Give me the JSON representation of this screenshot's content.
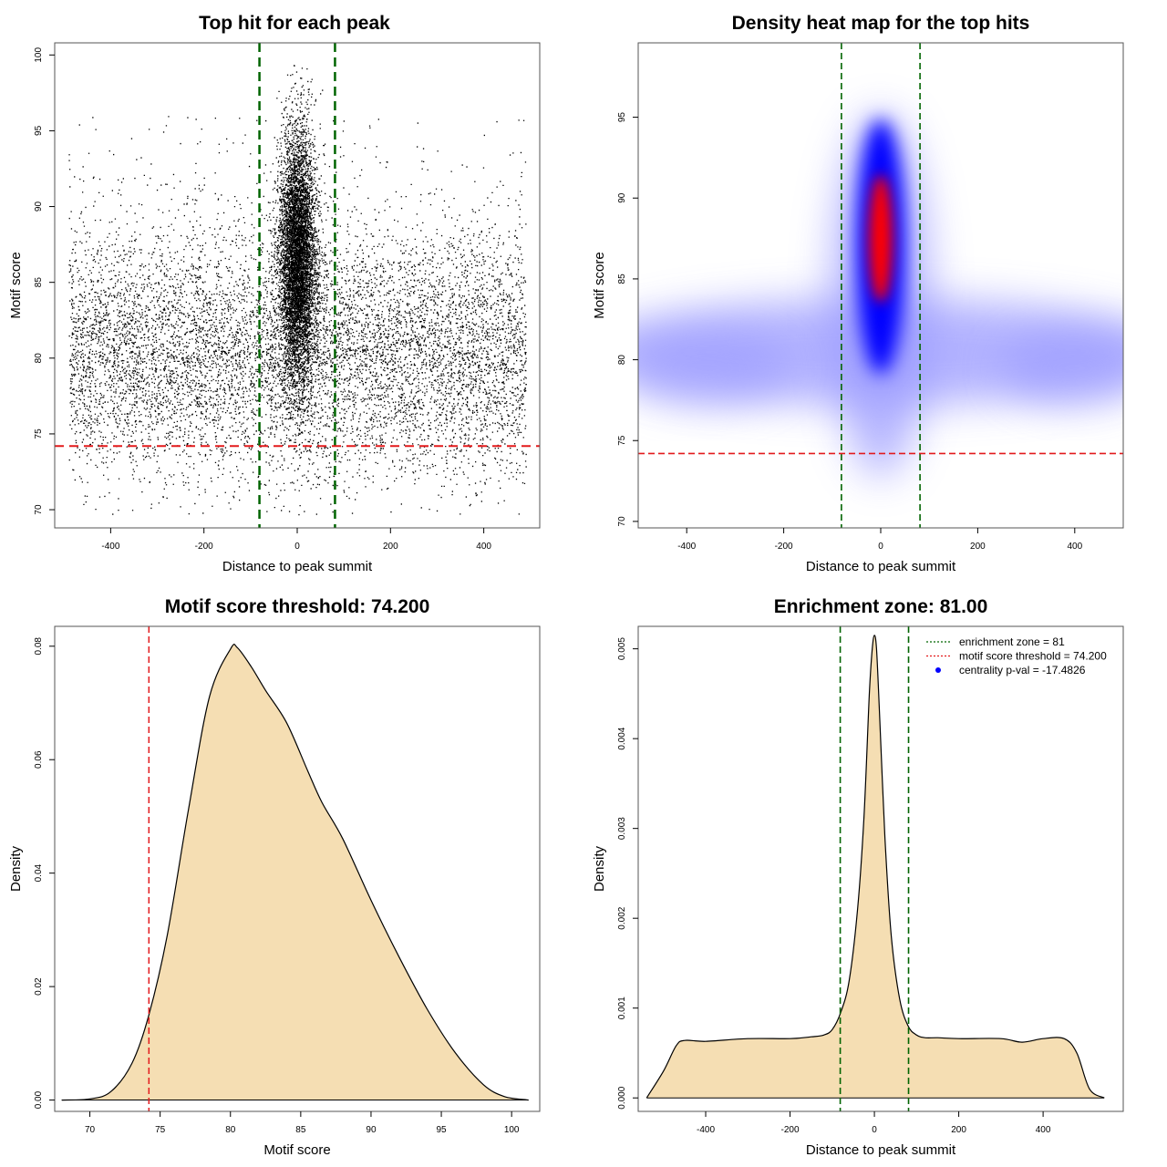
{
  "chart_data": [
    {
      "type": "scatter",
      "title": "Top hit for each peak",
      "xlabel": "Distance to peak summit",
      "ylabel": "Motif score",
      "xlim": [
        -520,
        520
      ],
      "ylim": [
        68.8,
        100.8
      ],
      "xticks": [
        "-400",
        "-200",
        "0",
        "200",
        "400"
      ],
      "xtick_values": [
        -400,
        -200,
        0,
        200,
        400
      ],
      "yticks": [
        "70",
        "75",
        "80",
        "85",
        "90",
        "95",
        "100"
      ],
      "ytick_values": [
        70,
        75,
        80,
        85,
        90,
        95,
        100
      ],
      "threshold": 74.2,
      "enrichment_zone": [
        -81,
        81
      ],
      "point_color": "#000000",
      "vline_color": "#006400",
      "hline_color": "#e31a1c",
      "points": {
        "background": {
          "n": 9000,
          "x_range": [
            -490,
            490
          ],
          "mean": 80.3,
          "sd": 4.1
        },
        "central": {
          "n": 7000,
          "x_mean": 0,
          "x_sd": 20,
          "mean": 86.5,
          "sd": 4.2
        },
        "max_score": 99.6,
        "min_score": 69.7
      }
    },
    {
      "type": "heatmap",
      "title": "Density heat map for the top hits",
      "xlabel": "Distance to peak summit",
      "ylabel": "Motif score",
      "xlim": [
        -500,
        500
      ],
      "ylim": [
        69.6,
        99.6
      ],
      "xticks": [
        "-400",
        "-200",
        "0",
        "200",
        "400"
      ],
      "xtick_values": [
        -400,
        -200,
        0,
        200,
        400
      ],
      "yticks": [
        "70",
        "75",
        "80",
        "85",
        "90",
        "95"
      ],
      "ytick_values": [
        70,
        75,
        80,
        85,
        90,
        95
      ],
      "threshold": 74.2,
      "enrichment_zone": [
        -81,
        81
      ],
      "colors": [
        "#ffffff",
        "#9999ff",
        "#0000ff",
        "#ff0000"
      ],
      "peak": {
        "x": 0,
        "y": 87.5
      },
      "vline_color": "#006400",
      "hline_color": "#e31a1c"
    },
    {
      "type": "area",
      "title": "Motif score threshold: 74.200",
      "xlabel": "Motif score",
      "ylabel": "Density",
      "xlim": [
        67.5,
        102
      ],
      "ylim": [
        -0.002,
        0.0835
      ],
      "xticks": [
        "70",
        "75",
        "80",
        "85",
        "90",
        "95",
        "100"
      ],
      "xtick_values": [
        70,
        75,
        80,
        85,
        90,
        95,
        100
      ],
      "yticks": [
        "0.00",
        "0.02",
        "0.04",
        "0.06",
        "0.08"
      ],
      "ytick_values": [
        0,
        0.02,
        0.04,
        0.06,
        0.08
      ],
      "fill_color": "#f5deb3",
      "threshold": 74.2,
      "threshold_color": "#e31a1c",
      "x": [
        68.0,
        70.0,
        71.5,
        73.0,
        74.2,
        75.5,
        77.0,
        78.5,
        80.0,
        80.5,
        81.5,
        82.5,
        84.0,
        85.5,
        86.5,
        88.0,
        90.0,
        92.0,
        94.0,
        96.0,
        98.0,
        99.5,
        101.2
      ],
      "y": [
        0.0,
        0.0002,
        0.0015,
        0.0065,
        0.015,
        0.029,
        0.051,
        0.071,
        0.0795,
        0.0797,
        0.0763,
        0.0722,
        0.0665,
        0.058,
        0.0525,
        0.046,
        0.0352,
        0.0252,
        0.016,
        0.0083,
        0.0027,
        0.0006,
        0.0
      ]
    },
    {
      "type": "area",
      "title": "Enrichment zone: 81.00",
      "xlabel": "Distance to peak summit",
      "ylabel": "Density",
      "xlim": [
        -560,
        590
      ],
      "ylim": [
        -0.00015,
        0.00525
      ],
      "xticks": [
        "-400",
        "-200",
        "0",
        "200",
        "400"
      ],
      "xtick_values": [
        -400,
        -200,
        0,
        200,
        400
      ],
      "yticks": [
        "0.000",
        "0.001",
        "0.002",
        "0.003",
        "0.004",
        "0.005"
      ],
      "ytick_values": [
        0,
        0.001,
        0.002,
        0.003,
        0.004,
        0.005
      ],
      "fill_color": "#f5deb3",
      "enrichment_zone": [
        -81,
        81
      ],
      "zone_color": "#006400",
      "x": [
        -540,
        -500,
        -470,
        -450,
        -400,
        -300,
        -200,
        -150,
        -120,
        -100,
        -80,
        -60,
        -40,
        -25,
        -12,
        -5,
        0,
        5,
        12,
        25,
        40,
        60,
        80,
        100,
        120,
        150,
        200,
        300,
        350,
        400,
        450,
        480,
        510,
        545
      ],
      "y": [
        0.0,
        0.0003,
        0.00058,
        0.00064,
        0.00063,
        0.00066,
        0.00066,
        0.00068,
        0.0007,
        0.00076,
        0.00095,
        0.0013,
        0.0021,
        0.0031,
        0.0045,
        0.005,
        0.00515,
        0.005,
        0.0043,
        0.0029,
        0.0018,
        0.0011,
        0.0008,
        0.0007,
        0.00067,
        0.00067,
        0.00066,
        0.00066,
        0.00062,
        0.00066,
        0.00066,
        0.0005,
        0.0001,
        0.0
      ],
      "legend": {
        "position": "top-right",
        "entries": [
          {
            "label": "enrichment zone = 81",
            "color": "#006400",
            "style": "dotted-line"
          },
          {
            "label": "motif score threshold = 74.200",
            "color": "#e31a1c",
            "style": "dotted-line"
          },
          {
            "label": "centrality p-val = -17.4826",
            "color": "#0000ff",
            "style": "dot"
          }
        ]
      }
    }
  ]
}
